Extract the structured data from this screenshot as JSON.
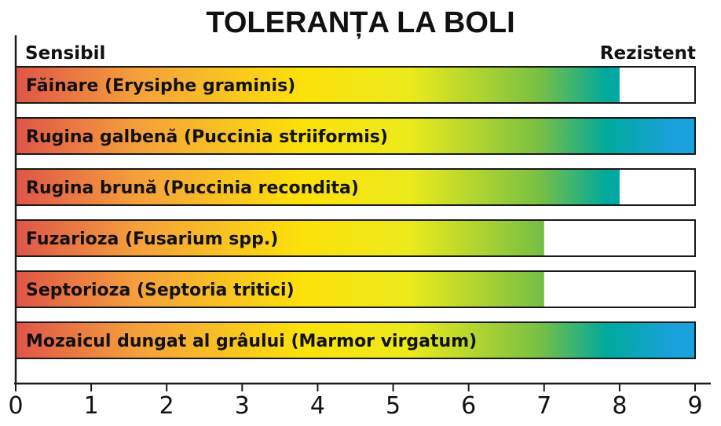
{
  "title": "TOLERANȚA LA BOLI",
  "scale_labels": {
    "left": "Sensibil",
    "right": "Rezistent"
  },
  "colors": {
    "gradient": [
      "#df5548",
      "#f5a03c",
      "#fce10a",
      "#ecea1c",
      "#79c043",
      "#00a99d",
      "#1aa2dd"
    ],
    "border": "#1a1a1a",
    "axis": "#1a1a1a",
    "text": "#111111"
  },
  "chart_data": {
    "type": "bar",
    "orientation": "horizontal",
    "title": "TOLERANȚA LA BOLI",
    "xlim": [
      0,
      9
    ],
    "xticks": [
      "0",
      "1",
      "2",
      "3",
      "4",
      "5",
      "6",
      "7",
      "8",
      "9"
    ],
    "categories": [
      "Făinare (Erysiphe graminis)",
      "Rugina galbenă (Puccinia striiformis)",
      "Rugina brună (Puccinia recondita)",
      "Fuzarioza (Fusarium spp.)",
      "Septorioza (Septoria tritici)",
      "Mozaicul dungat al grâului (Marmor virgatum)"
    ],
    "values": [
      8,
      9,
      8,
      7,
      7,
      9
    ],
    "grid": false
  }
}
